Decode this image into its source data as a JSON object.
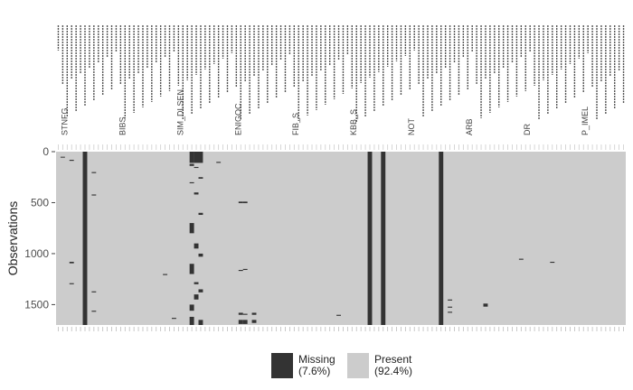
{
  "chart_data": {
    "type": "heatmap",
    "title": "",
    "xlabel": "",
    "ylabel": "Observations",
    "ylim": [
      0,
      1700
    ],
    "yticks": [
      0,
      500,
      1000,
      1500
    ],
    "variable_count": 128,
    "observation_count": 1700,
    "x_tick_labels_note": "Variable names on the x axis are rendered vertically and are illegible in the source; only fragments such as STNFG, BIBS, SIM_DLSEN, FIB, KBB, NOT, ARB, DR, P_IMEL are discernible.",
    "x_tick_fragments": [
      "STNFG",
      "BIBS",
      "SIM_DLSEN",
      "ENIGOC",
      "FIB_S",
      "KBB_S",
      "NOT",
      "ARB",
      "DR",
      "P_IMEL"
    ],
    "colors": {
      "missing": "#333333",
      "present": "#cccccc"
    },
    "legend": [
      {
        "label": "Missing",
        "pct": "(7.6%)"
      },
      {
        "label": "Present",
        "pct": "(92.4%)"
      }
    ],
    "missing_pct": 7.6,
    "present_pct": 92.4,
    "missing_columns": [
      {
        "col": 1,
        "rows": [
          [
            50,
            58
          ]
        ]
      },
      {
        "col": 3,
        "rows": [
          [
            80,
            90
          ],
          [
            1080,
            1095
          ],
          [
            1290,
            1300
          ]
        ]
      },
      {
        "col": 6,
        "rows": [
          [
            0,
            1700
          ]
        ]
      },
      {
        "col": 8,
        "rows": [
          [
            200,
            210
          ],
          [
            420,
            430
          ],
          [
            1370,
            1380
          ],
          [
            1560,
            1570
          ]
        ]
      },
      {
        "col": 24,
        "rows": [
          [
            1200,
            1210
          ]
        ]
      },
      {
        "col": 26,
        "rows": [
          [
            1630,
            1640
          ]
        ]
      },
      {
        "col": 30,
        "rows": [
          [
            0,
            110
          ],
          [
            120,
            140
          ],
          [
            300,
            310
          ],
          [
            700,
            800
          ],
          [
            1100,
            1200
          ],
          [
            1500,
            1560
          ],
          [
            1620,
            1700
          ]
        ]
      },
      {
        "col": 31,
        "rows": [
          [
            0,
            110
          ],
          [
            150,
            160
          ],
          [
            400,
            420
          ],
          [
            900,
            950
          ],
          [
            1280,
            1300
          ],
          [
            1400,
            1450
          ]
        ]
      },
      {
        "col": 32,
        "rows": [
          [
            0,
            110
          ],
          [
            250,
            265
          ],
          [
            600,
            620
          ],
          [
            1000,
            1030
          ],
          [
            1350,
            1380
          ],
          [
            1650,
            1700
          ]
        ]
      },
      {
        "col": 36,
        "rows": [
          [
            100,
            110
          ]
        ]
      },
      {
        "col": 41,
        "rows": [
          [
            490,
            505
          ],
          [
            1160,
            1170
          ],
          [
            1580,
            1600
          ],
          [
            1650,
            1690
          ]
        ]
      },
      {
        "col": 42,
        "rows": [
          [
            490,
            505
          ],
          [
            1150,
            1160
          ],
          [
            1590,
            1600
          ],
          [
            1650,
            1690
          ]
        ]
      },
      {
        "col": 44,
        "rows": [
          [
            1580,
            1600
          ],
          [
            1650,
            1680
          ]
        ]
      },
      {
        "col": 63,
        "rows": [
          [
            1600,
            1610
          ]
        ]
      },
      {
        "col": 70,
        "rows": [
          [
            0,
            1700
          ]
        ]
      },
      {
        "col": 73,
        "rows": [
          [
            0,
            1700
          ]
        ]
      },
      {
        "col": 86,
        "rows": [
          [
            0,
            1700
          ]
        ]
      },
      {
        "col": 88,
        "rows": [
          [
            1450,
            1460
          ],
          [
            1520,
            1530
          ],
          [
            1570,
            1580
          ]
        ]
      },
      {
        "col": 96,
        "rows": [
          [
            1490,
            1520
          ]
        ]
      },
      {
        "col": 104,
        "rows": [
          [
            1050,
            1060
          ]
        ]
      },
      {
        "col": 111,
        "rows": [
          [
            1080,
            1090
          ]
        ]
      }
    ]
  }
}
